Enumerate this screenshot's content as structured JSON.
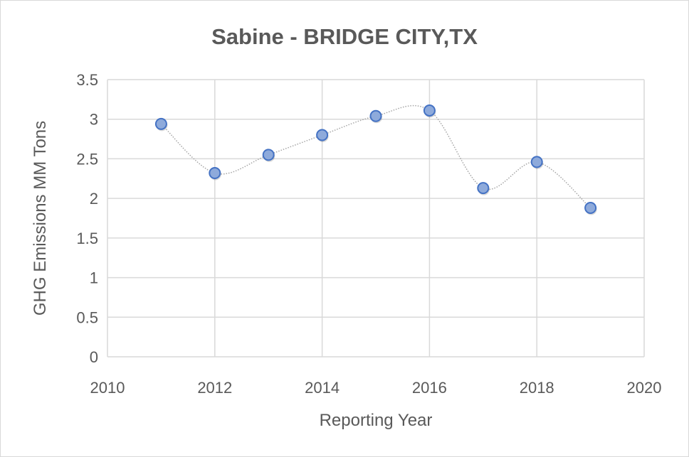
{
  "chart_data": {
    "type": "scatter",
    "title": "Sabine - BRIDGE CITY,TX",
    "xlabel": "Reporting Year",
    "ylabel": "GHG Emissions MM Tons",
    "xlim": [
      2010,
      2020
    ],
    "ylim": [
      0,
      3.5
    ],
    "xticks": [
      2010,
      2012,
      2014,
      2016,
      2018,
      2020
    ],
    "yticks": [
      0,
      0.5,
      1,
      1.5,
      2,
      2.5,
      3,
      3.5
    ],
    "grid": true,
    "smoothed_dotted_line": true,
    "series": [
      {
        "name": "GHG Emissions",
        "x": [
          2011,
          2012,
          2013,
          2014,
          2015,
          2016,
          2017,
          2018,
          2019
        ],
        "y": [
          2.94,
          2.32,
          2.55,
          2.8,
          3.04,
          3.11,
          2.13,
          2.46,
          1.88
        ]
      }
    ],
    "colors": {
      "marker_fill": "#8eaadb",
      "marker_edge": "#4472c4",
      "line": "#a6a6a6",
      "grid": "#d9d9d9",
      "text": "#595959"
    }
  }
}
